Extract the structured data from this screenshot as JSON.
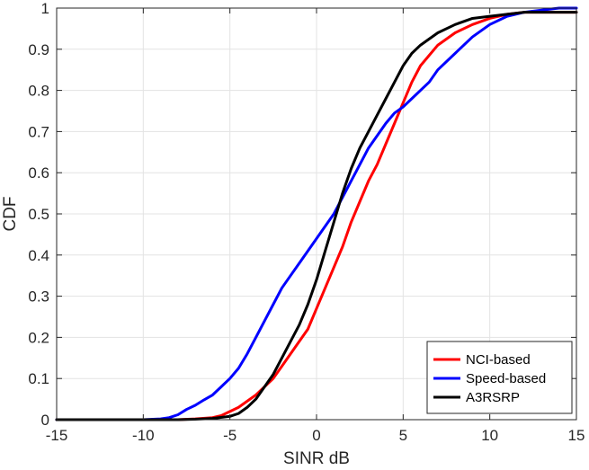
{
  "chart_data": {
    "type": "line",
    "title": "",
    "xlabel": "SINR dB",
    "ylabel": "CDF",
    "xlim": [
      -15,
      15
    ],
    "ylim": [
      0,
      1
    ],
    "grid": true,
    "legend_position": "bottom-right",
    "x_ticks": [
      -15,
      -10,
      -5,
      0,
      5,
      10,
      15
    ],
    "x_tick_labels": [
      "-15",
      "-10",
      "-5",
      "0",
      "5",
      "10",
      "15"
    ],
    "y_ticks": [
      0,
      0.1,
      0.2,
      0.3,
      0.4,
      0.5,
      0.6,
      0.7,
      0.8,
      0.9,
      1
    ],
    "y_tick_labels": [
      "0",
      "0.1",
      "0.2",
      "0.3",
      "0.4",
      "0.5",
      "0.6",
      "0.7",
      "0.8",
      "0.9",
      "1"
    ],
    "series": [
      {
        "name": "NCI-based",
        "color": "#ff0000",
        "points": [
          [
            -15,
            0
          ],
          [
            -10,
            0
          ],
          [
            -9,
            0
          ],
          [
            -8,
            0
          ],
          [
            -7,
            0.002
          ],
          [
            -6,
            0.005
          ],
          [
            -5.5,
            0.01
          ],
          [
            -5,
            0.02
          ],
          [
            -4.5,
            0.03
          ],
          [
            -4,
            0.045
          ],
          [
            -3.5,
            0.06
          ],
          [
            -3,
            0.08
          ],
          [
            -2.5,
            0.1
          ],
          [
            -2,
            0.13
          ],
          [
            -1.5,
            0.16
          ],
          [
            -1,
            0.19
          ],
          [
            -0.5,
            0.22
          ],
          [
            0,
            0.27
          ],
          [
            0.5,
            0.32
          ],
          [
            1,
            0.37
          ],
          [
            1.5,
            0.42
          ],
          [
            2,
            0.48
          ],
          [
            2.5,
            0.53
          ],
          [
            3,
            0.58
          ],
          [
            3.5,
            0.62
          ],
          [
            4,
            0.67
          ],
          [
            4.5,
            0.72
          ],
          [
            5,
            0.77
          ],
          [
            5.5,
            0.82
          ],
          [
            6,
            0.86
          ],
          [
            7,
            0.91
          ],
          [
            8,
            0.94
          ],
          [
            9,
            0.96
          ],
          [
            10,
            0.975
          ],
          [
            11,
            0.985
          ],
          [
            12,
            0.99
          ],
          [
            13,
            0.99
          ],
          [
            14,
            0.99
          ],
          [
            15,
            0.99
          ]
        ]
      },
      {
        "name": "Speed-based",
        "color": "#0000ff",
        "points": [
          [
            -15,
            0
          ],
          [
            -10,
            0
          ],
          [
            -9,
            0.002
          ],
          [
            -8.5,
            0.005
          ],
          [
            -8,
            0.012
          ],
          [
            -7.5,
            0.025
          ],
          [
            -7,
            0.035
          ],
          [
            -6.5,
            0.048
          ],
          [
            -6,
            0.06
          ],
          [
            -5.5,
            0.08
          ],
          [
            -5,
            0.1
          ],
          [
            -4.5,
            0.125
          ],
          [
            -4,
            0.16
          ],
          [
            -3.5,
            0.2
          ],
          [
            -3,
            0.24
          ],
          [
            -2.5,
            0.28
          ],
          [
            -2,
            0.32
          ],
          [
            -1.5,
            0.35
          ],
          [
            -1,
            0.38
          ],
          [
            -0.5,
            0.41
          ],
          [
            0,
            0.44
          ],
          [
            0.5,
            0.47
          ],
          [
            1,
            0.5
          ],
          [
            1.5,
            0.54
          ],
          [
            2,
            0.58
          ],
          [
            2.5,
            0.62
          ],
          [
            3,
            0.66
          ],
          [
            3.5,
            0.69
          ],
          [
            4,
            0.72
          ],
          [
            4.5,
            0.745
          ],
          [
            5,
            0.76
          ],
          [
            5.5,
            0.78
          ],
          [
            6,
            0.8
          ],
          [
            6.5,
            0.82
          ],
          [
            7,
            0.85
          ],
          [
            8,
            0.89
          ],
          [
            9,
            0.93
          ],
          [
            10,
            0.96
          ],
          [
            11,
            0.98
          ],
          [
            12,
            0.99
          ],
          [
            13,
            0.995
          ],
          [
            14,
            1
          ],
          [
            15,
            1
          ]
        ]
      },
      {
        "name": "A3RSRP",
        "color": "#000000",
        "points": [
          [
            -15,
            0
          ],
          [
            -10,
            0
          ],
          [
            -8,
            0
          ],
          [
            -7,
            0.001
          ],
          [
            -6,
            0.003
          ],
          [
            -5,
            0.008
          ],
          [
            -4.5,
            0.015
          ],
          [
            -4,
            0.03
          ],
          [
            -3.5,
            0.05
          ],
          [
            -3,
            0.08
          ],
          [
            -2.5,
            0.11
          ],
          [
            -2,
            0.15
          ],
          [
            -1.5,
            0.19
          ],
          [
            -1,
            0.23
          ],
          [
            -0.5,
            0.28
          ],
          [
            0,
            0.34
          ],
          [
            0.5,
            0.41
          ],
          [
            1,
            0.48
          ],
          [
            1.5,
            0.55
          ],
          [
            2,
            0.61
          ],
          [
            2.5,
            0.66
          ],
          [
            3,
            0.7
          ],
          [
            3.5,
            0.74
          ],
          [
            4,
            0.78
          ],
          [
            4.5,
            0.82
          ],
          [
            5,
            0.86
          ],
          [
            5.5,
            0.89
          ],
          [
            6,
            0.91
          ],
          [
            7,
            0.94
          ],
          [
            8,
            0.96
          ],
          [
            9,
            0.975
          ],
          [
            10,
            0.98
          ],
          [
            11,
            0.985
          ],
          [
            12,
            0.99
          ],
          [
            13,
            0.99
          ],
          [
            14,
            0.99
          ],
          [
            15,
            0.99
          ]
        ]
      }
    ]
  }
}
